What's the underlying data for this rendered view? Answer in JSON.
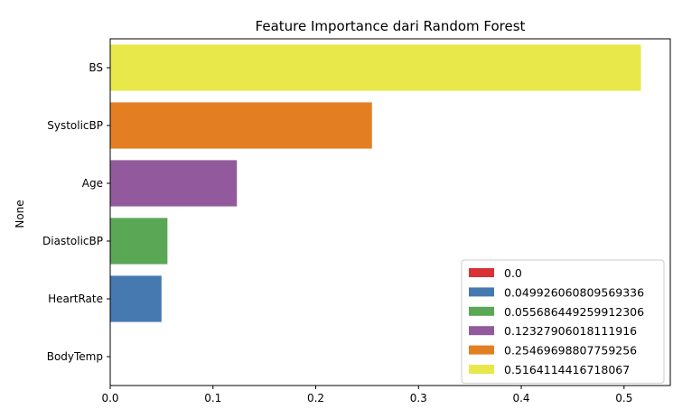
{
  "chart_data": {
    "type": "bar",
    "orientation": "horizontal",
    "title": "Feature Importance dari Random Forest",
    "xlabel": "",
    "ylabel": "None",
    "categories": [
      "BS",
      "SystolicBP",
      "Age",
      "DiastolicBP",
      "HeartRate",
      "BodyTemp"
    ],
    "values": [
      0.5164114416718067,
      0.25469698807759256,
      0.12327906018111916,
      0.055686449259912306,
      0.049926060809569336,
      0.0
    ],
    "colors": [
      "#e8e84a",
      "#e37f22",
      "#925a9c",
      "#5aa755",
      "#4679af",
      "#d73235"
    ],
    "xlim": [
      0,
      0.545
    ],
    "xticks": [
      "0.0",
      "0.1",
      "0.2",
      "0.3",
      "0.4",
      "0.5"
    ],
    "xtick_values": [
      0,
      0.1,
      0.2,
      0.3,
      0.4,
      0.5
    ],
    "grid": false,
    "legend_position": "lower-right",
    "legend": [
      {
        "label": "0.0",
        "color": "#d73235"
      },
      {
        "label": "0.049926060809569336",
        "color": "#4679af"
      },
      {
        "label": "0.055686449259912306",
        "color": "#5aa755"
      },
      {
        "label": "0.12327906018111916",
        "color": "#925a9c"
      },
      {
        "label": "0.25469698807759256",
        "color": "#e37f22"
      },
      {
        "label": "0.5164114416718067",
        "color": "#e8e84a"
      }
    ]
  }
}
